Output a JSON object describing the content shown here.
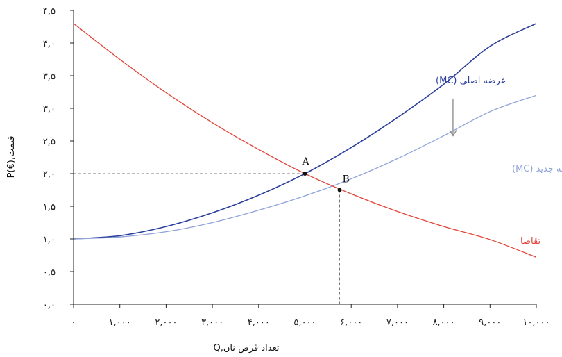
{
  "chart_data": {
    "type": "line",
    "xlabel": "Q,تعداد قرص نان",
    "ylabel": "P(€),قیمت",
    "xlim": [
      0,
      10000
    ],
    "ylim": [
      0,
      4.5
    ],
    "x_ticks": [
      0,
      1000,
      2000,
      3000,
      4000,
      5000,
      6000,
      7000,
      8000,
      9000,
      10000
    ],
    "x_tick_labels": [
      "۰",
      "۱,۰۰۰",
      "۲,۰۰۰",
      "۳,۰۰۰",
      "۴,۰۰۰",
      "۵,۰۰۰",
      "۶,۰۰۰",
      "۷,۰۰۰",
      "۸,۰۰۰",
      "۹,۰۰۰",
      "۱۰,۰۰۰"
    ],
    "y_ticks": [
      0,
      0.5,
      1,
      1.5,
      2,
      2.5,
      3,
      3.5,
      4,
      4.5
    ],
    "y_tick_labels": [
      "۰,۰",
      "۰,۵",
      "۱,۰",
      "۱,۵",
      "۲,۰",
      "۲,۵",
      "۳,۰",
      "۳,۵",
      "۴,۰",
      "۴,۵"
    ],
    "grid": false,
    "series": [
      {
        "name": "عرضه اصلی (MC)",
        "color": "#2a3f9a",
        "x": [
          0,
          1000,
          2000,
          3000,
          4000,
          5000,
          6000,
          7000,
          8000,
          9000,
          10000
        ],
        "y": [
          1.0,
          1.05,
          1.19,
          1.4,
          1.67,
          2.0,
          2.4,
          2.86,
          3.37,
          3.95,
          4.3
        ]
      },
      {
        "name": "عرضه جدید (MC)",
        "color": "#8fa3d8",
        "x": [
          0,
          1000,
          2000,
          3000,
          4000,
          5000,
          6000,
          7000,
          8000,
          9000,
          10000
        ],
        "y": [
          1.0,
          1.03,
          1.11,
          1.25,
          1.44,
          1.66,
          1.92,
          2.23,
          2.58,
          2.95,
          3.2
        ]
      },
      {
        "name": "تقاضا",
        "color": "#e0463a",
        "x": [
          0,
          1000,
          2000,
          3000,
          4000,
          5000,
          6000,
          7000,
          8000,
          9000,
          10000
        ],
        "y": [
          4.3,
          3.75,
          3.24,
          2.78,
          2.37,
          2.0,
          1.69,
          1.42,
          1.19,
          0.99,
          0.72
        ]
      }
    ],
    "points": [
      {
        "label": "A",
        "x": 5000,
        "y": 2.0
      },
      {
        "label": "B",
        "x": 5750,
        "y": 1.75
      }
    ],
    "arrow_color": "#888888"
  }
}
